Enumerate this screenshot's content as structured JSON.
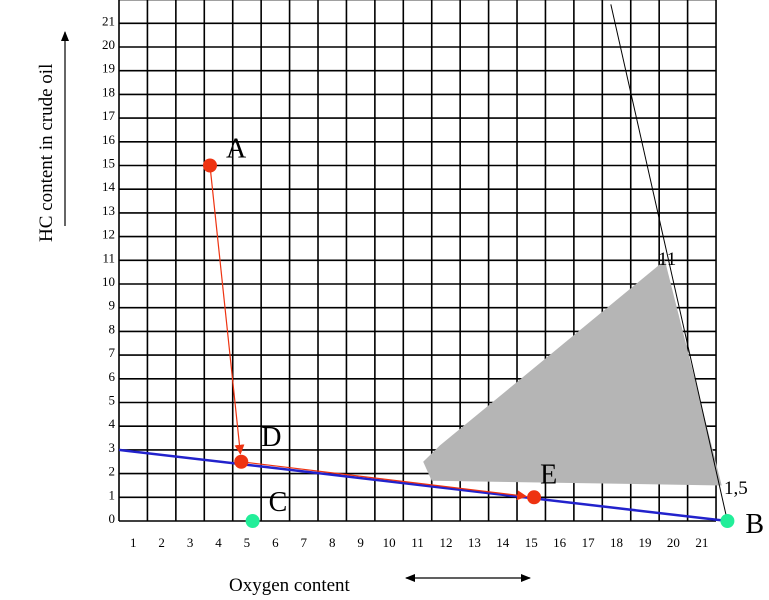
{
  "axes": {
    "y_title": "HC content in crude oil",
    "x_title": "Oxygen content",
    "x_ticks": [
      "1",
      "2",
      "3",
      "4",
      "5",
      "6",
      "7",
      "8",
      "9",
      "10",
      "11",
      "12",
      "13",
      "14",
      "15",
      "16",
      "17",
      "18",
      "19",
      "20",
      "21"
    ],
    "y_ticks": [
      "0",
      "1",
      "2",
      "3",
      "4",
      "5",
      "6",
      "7",
      "8",
      "9",
      "10",
      "11",
      "12",
      "13",
      "14",
      "15",
      "16",
      "17",
      "18",
      "19",
      "20",
      "21"
    ]
  },
  "points": [
    {
      "label": "A",
      "x": 3.2,
      "y": 15,
      "color": "#ee3311"
    },
    {
      "label": "D",
      "x": 4.3,
      "y": 2.5,
      "color": "#ee3311"
    },
    {
      "label": "E",
      "x": 14.6,
      "y": 1,
      "color": "#ee3311"
    },
    {
      "label": "C",
      "x": 4.7,
      "y": 0,
      "color": "#22ee99"
    },
    {
      "label": "B",
      "x": 21.4,
      "y": 0,
      "color": "#22ee99"
    }
  ],
  "annotations": {
    "peak_value": "11",
    "corner_value": "1,5"
  },
  "colors": {
    "region": "#b5b5b5",
    "mixing_line": "#2222cc",
    "arrow": "#ee3311",
    "grid": "#000000"
  },
  "chart_data": {
    "type": "line",
    "xlabel": "Oxygen content",
    "ylabel": "HC content in crude oil",
    "xlim": [
      0,
      21.4
    ],
    "ylim": [
      0,
      21.8
    ],
    "mixing_line": {
      "from": [
        0,
        3
      ],
      "to": [
        21.4,
        0
      ]
    },
    "arrows": [
      {
        "from": "A",
        "to": "D"
      },
      {
        "from": "D",
        "to": "E"
      }
    ],
    "region": [
      [
        19.2,
        11
      ],
      [
        21.2,
        1.5
      ],
      [
        11,
        1.7
      ],
      [
        10.7,
        2.5
      ],
      [
        11.3,
        3.2
      ]
    ],
    "steep_line": {
      "from": [
        17.3,
        21.8
      ],
      "to": [
        21.4,
        0
      ]
    }
  }
}
